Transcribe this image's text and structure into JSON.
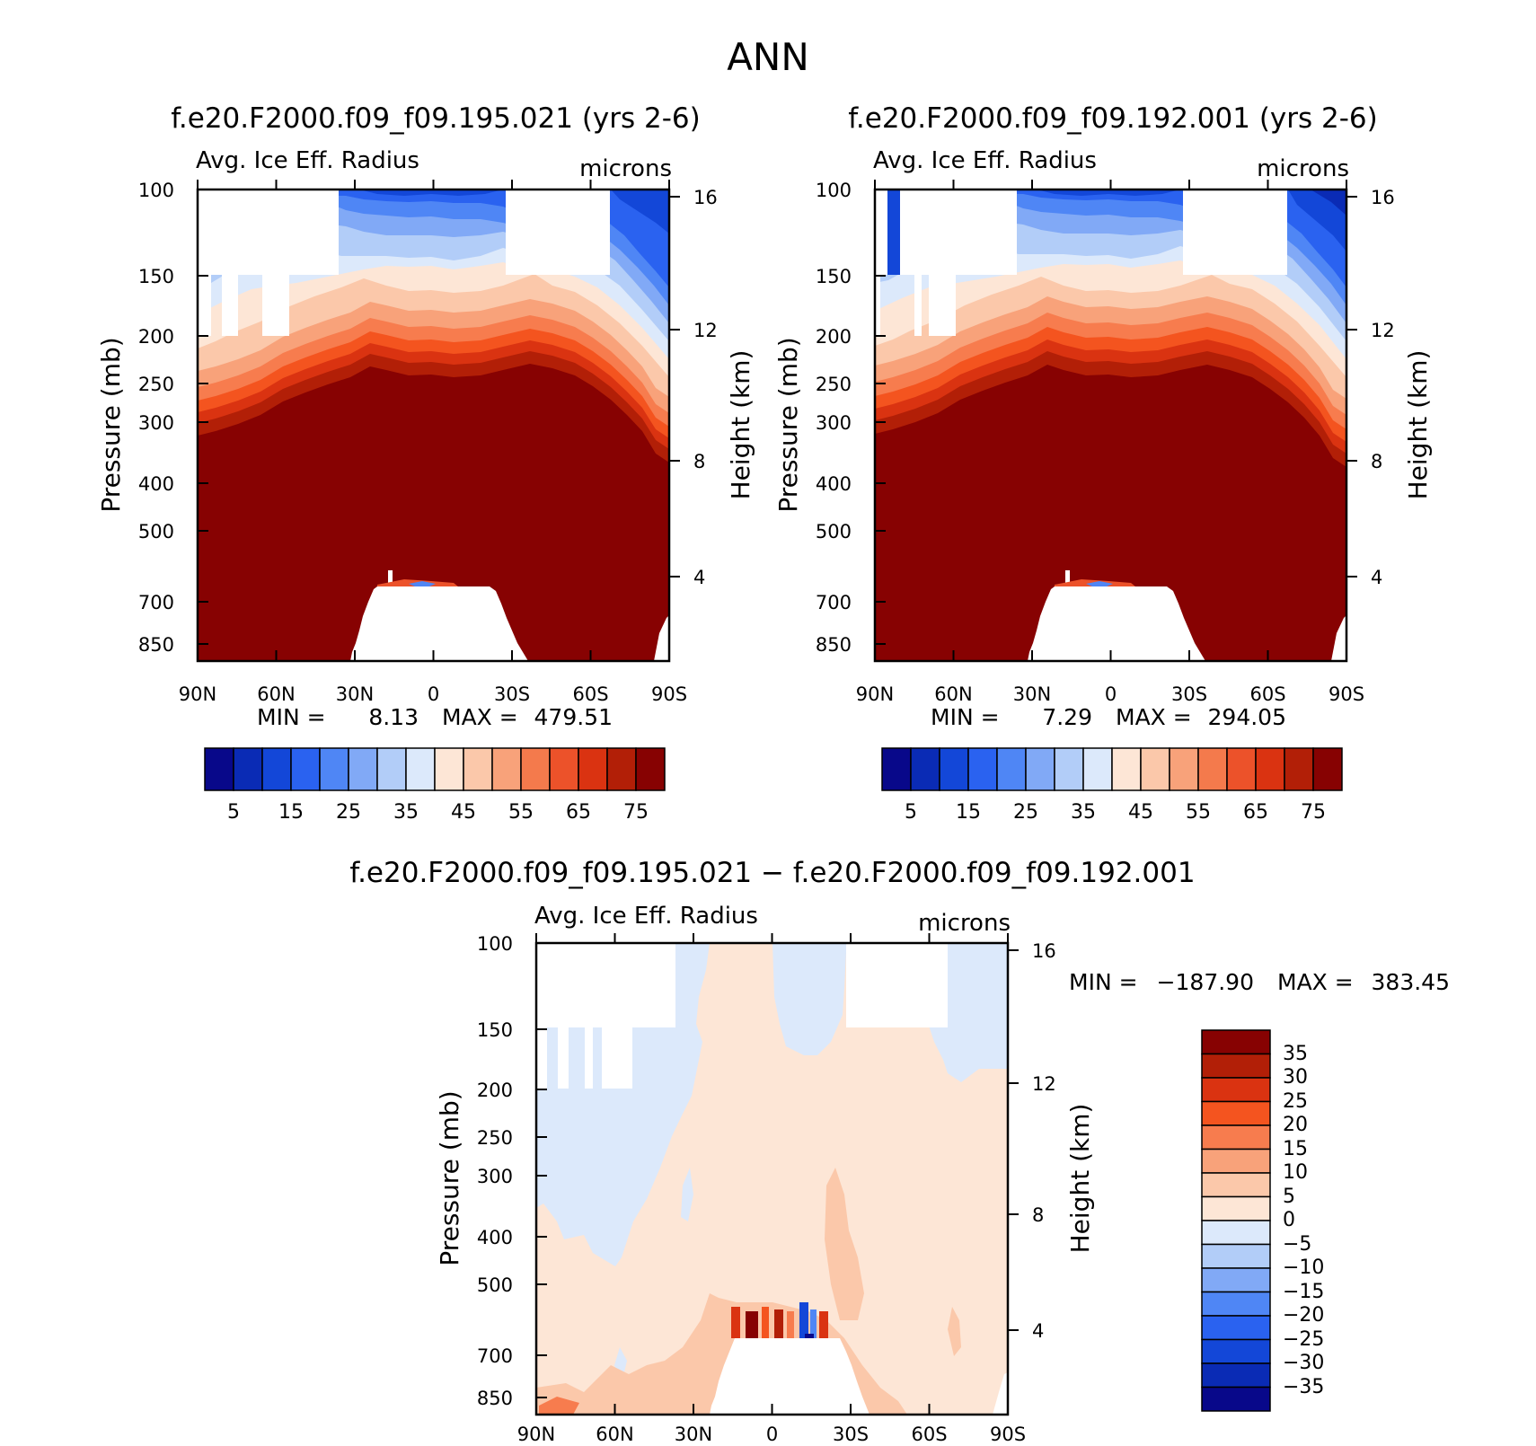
{
  "page_title": "ANN",
  "chart_data": [
    {
      "type": "heatmap",
      "id": "left",
      "title": "f.e20.F2000.f09_f09.195.021 (yrs 2-6)",
      "variable": "Avg. Ice Eff. Radius",
      "units": "microns",
      "ylabel": "Pressure (mb)",
      "ylabel_right": "Height (km)",
      "x_ticks": [
        "90N",
        "60N",
        "30N",
        "0",
        "30S",
        "60S",
        "90S"
      ],
      "y_ticks": [
        "100",
        "150",
        "200",
        "250",
        "300",
        "400",
        "500",
        "700",
        "850"
      ],
      "y_ticks_right": [
        "16",
        "12",
        "8",
        "4"
      ],
      "stats": {
        "min_label": "MIN =",
        "min": "8.13",
        "max_label": "MAX =",
        "max": "479.51"
      },
      "colorbar": {
        "orientation": "horizontal",
        "labels": [
          "5",
          "15",
          "25",
          "35",
          "45",
          "55",
          "65",
          "75"
        ],
        "colors": [
          "#08088a",
          "#0a2bb5",
          "#1347d8",
          "#2a62f0",
          "#4f86f5",
          "#81a9f6",
          "#b2cdf8",
          "#dce9fb",
          "#fde6d6",
          "#fbc8aa",
          "#f8a27a",
          "#f47a4c",
          "#ec522a",
          "#da3311",
          "#b21f07",
          "#870202"
        ]
      }
    },
    {
      "type": "heatmap",
      "id": "right",
      "title": "f.e20.F2000.f09_f09.192.001 (yrs 2-6)",
      "variable": "Avg. Ice Eff. Radius",
      "units": "microns",
      "ylabel": "Pressure (mb)",
      "ylabel_right": "Height (km)",
      "x_ticks": [
        "90N",
        "60N",
        "30N",
        "0",
        "30S",
        "60S",
        "90S"
      ],
      "y_ticks": [
        "100",
        "150",
        "200",
        "250",
        "300",
        "400",
        "500",
        "700",
        "850"
      ],
      "y_ticks_right": [
        "16",
        "12",
        "8",
        "4"
      ],
      "stats": {
        "min_label": "MIN =",
        "min": "7.29",
        "max_label": "MAX =",
        "max": "294.05"
      },
      "colorbar": {
        "orientation": "horizontal",
        "labels": [
          "5",
          "15",
          "25",
          "35",
          "45",
          "55",
          "65",
          "75"
        ],
        "colors": [
          "#08088a",
          "#0a2bb5",
          "#1347d8",
          "#2a62f0",
          "#4f86f5",
          "#81a9f6",
          "#b2cdf8",
          "#dce9fb",
          "#fde6d6",
          "#fbc8aa",
          "#f8a27a",
          "#f47a4c",
          "#ec522a",
          "#da3311",
          "#b21f07",
          "#870202"
        ]
      }
    },
    {
      "type": "heatmap",
      "id": "diff",
      "title": "f.e20.F2000.f09_f09.195.021 − f.e20.F2000.f09_f09.192.001",
      "variable": "Avg. Ice Eff. Radius",
      "units": "microns",
      "ylabel": "Pressure (mb)",
      "ylabel_right": "Height (km)",
      "x_ticks": [
        "90N",
        "60N",
        "30N",
        "0",
        "30S",
        "60S",
        "90S"
      ],
      "y_ticks": [
        "100",
        "150",
        "200",
        "250",
        "300",
        "400",
        "500",
        "700",
        "850"
      ],
      "y_ticks_right": [
        "16",
        "12",
        "8",
        "4"
      ],
      "stats": {
        "min_label": "MIN =",
        "min": "−187.90",
        "max_label": "MAX =",
        "max": "383.45"
      },
      "colorbar": {
        "orientation": "vertical",
        "labels": [
          "35",
          "30",
          "25",
          "20",
          "15",
          "10",
          "5",
          "0",
          "−5",
          "−10",
          "−15",
          "−20",
          "−25",
          "−30",
          "−35"
        ],
        "colors": [
          "#870202",
          "#b21f07",
          "#da3311",
          "#f4541f",
          "#f77c4e",
          "#f8a27a",
          "#fbc8aa",
          "#fde6d6",
          "#dce9fb",
          "#b2cdf8",
          "#81a9f6",
          "#4f86f5",
          "#2a62f0",
          "#1347d8",
          "#0a2bb5",
          "#08088a"
        ]
      }
    }
  ]
}
